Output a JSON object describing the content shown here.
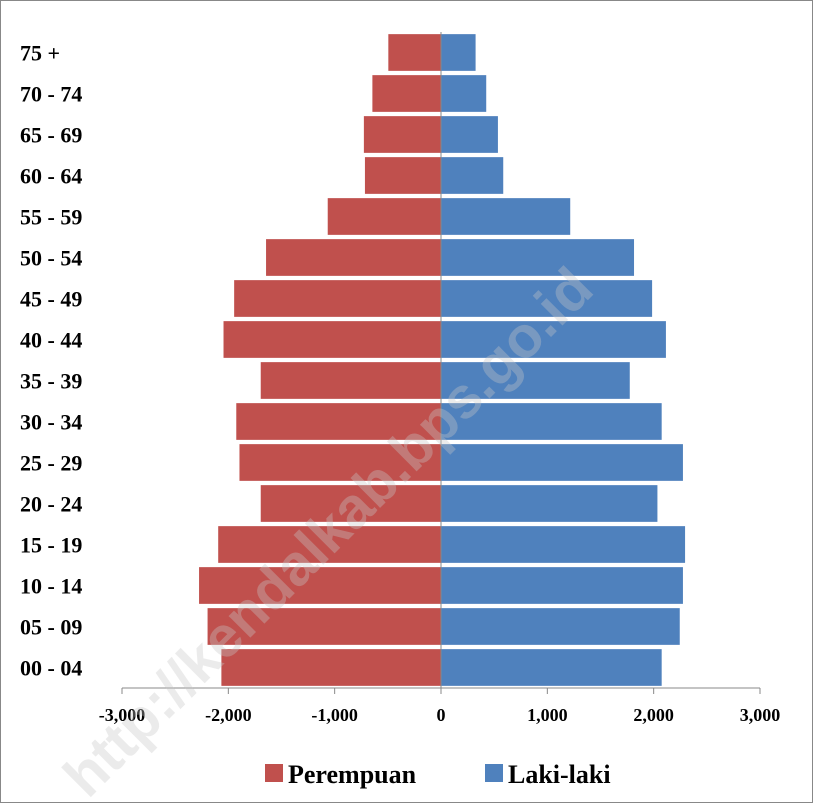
{
  "chart_data": {
    "type": "bar",
    "orientation": "horizontal",
    "categories": [
      "00 - 04",
      "05 - 09",
      "10 - 14",
      "15 - 19",
      "20 - 24",
      "25 - 29",
      "30 - 34",
      "35 - 39",
      "40 - 44",
      "45 - 49",
      "50 - 54",
      "55 - 59",
      "60 - 64",
      "65 - 69",
      "70 - 74",
      "75 +"
    ],
    "series": [
      {
        "name": "Perempuan",
        "color": "#c0504d",
        "values": [
          -2070,
          -2200,
          -2280,
          -2100,
          -1700,
          -1900,
          -1930,
          -1700,
          -2050,
          -1950,
          -1650,
          -1070,
          -720,
          -730,
          -650,
          -500
        ]
      },
      {
        "name": "Laki-laki",
        "color": "#4f81bd",
        "values": [
          2080,
          2250,
          2280,
          2300,
          2040,
          2280,
          2080,
          1780,
          2120,
          1990,
          1820,
          1220,
          590,
          540,
          430,
          330
        ]
      }
    ],
    "xlim": [
      -3000,
      3000
    ],
    "xticks": [
      -3000,
      -2000,
      -1000,
      0,
      1000,
      2000,
      3000
    ],
    "xtick_labels": [
      "-3,000",
      "-2,000",
      "-1,000",
      "0",
      "1,000",
      "2,000",
      "3,000"
    ],
    "legend": "bottom",
    "grid": false
  },
  "watermark": "http://kendalkab.bps.go.id"
}
